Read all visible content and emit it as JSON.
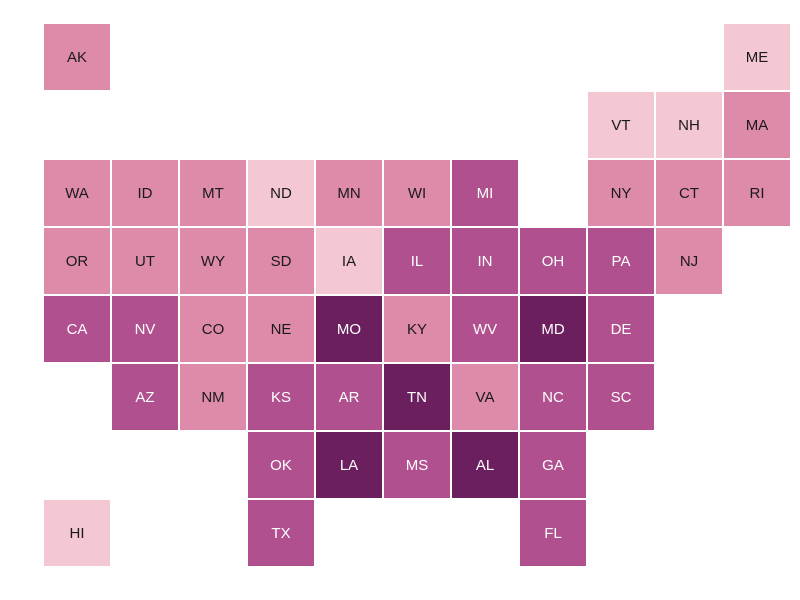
{
  "tiles": [
    {
      "label": "AK",
      "color": "#de8aab"
    },
    {
      "label": "ME",
      "color": "#f4c8d2"
    },
    {
      "label": "VT",
      "color": "#f4c8d2"
    },
    {
      "label": "NH",
      "color": "#f4c8d2"
    },
    {
      "label": "MA",
      "color": "#de8aab"
    },
    {
      "label": "WA",
      "color": "#de8aab"
    },
    {
      "label": "ID",
      "color": "#de8aab"
    },
    {
      "label": "MT",
      "color": "#de8aab"
    },
    {
      "label": "ND",
      "color": "#f4c8d2"
    },
    {
      "label": "MN",
      "color": "#de8aab"
    },
    {
      "label": "WI",
      "color": "#de8aab"
    },
    {
      "label": "MI",
      "color": "#b0508f"
    },
    {
      "label": "NY",
      "color": "#de8aab"
    },
    {
      "label": "CT",
      "color": "#de8aab"
    },
    {
      "label": "RI",
      "color": "#de8aab"
    },
    {
      "label": "OR",
      "color": "#de8aab"
    },
    {
      "label": "UT",
      "color": "#de8aab"
    },
    {
      "label": "WY",
      "color": "#de8aab"
    },
    {
      "label": "SD",
      "color": "#de8aab"
    },
    {
      "label": "IA",
      "color": "#f4c8d2"
    },
    {
      "label": "IL",
      "color": "#b0508f"
    },
    {
      "label": "IN",
      "color": "#b0508f"
    },
    {
      "label": "OH",
      "color": "#b0508f"
    },
    {
      "label": "PA",
      "color": "#b0508f"
    },
    {
      "label": "NJ",
      "color": "#de8aab"
    },
    {
      "label": "CA",
      "color": "#b0508f"
    },
    {
      "label": "NV",
      "color": "#b0508f"
    },
    {
      "label": "CO",
      "color": "#de8aab"
    },
    {
      "label": "NE",
      "color": "#de8aab"
    },
    {
      "label": "MO",
      "color": "#6b1f5e"
    },
    {
      "label": "KY",
      "color": "#de8aab"
    },
    {
      "label": "WV",
      "color": "#b0508f"
    },
    {
      "label": "MD",
      "color": "#6b1f5e"
    },
    {
      "label": "DE",
      "color": "#b0508f"
    },
    {
      "label": "AZ",
      "color": "#b0508f"
    },
    {
      "label": "NM",
      "color": "#de8aab"
    },
    {
      "label": "KS",
      "color": "#b0508f"
    },
    {
      "label": "AR",
      "color": "#b0508f"
    },
    {
      "label": "TN",
      "color": "#6b1f5e"
    },
    {
      "label": "VA",
      "color": "#de8aab"
    },
    {
      "label": "NC",
      "color": "#b0508f"
    },
    {
      "label": "SC",
      "color": "#b0508f"
    },
    {
      "label": "OK",
      "color": "#b0508f"
    },
    {
      "label": "LA",
      "color": "#6b1f5e"
    },
    {
      "label": "MS",
      "color": "#b0508f"
    },
    {
      "label": "AL",
      "color": "#6b1f5e"
    },
    {
      "label": "GA",
      "color": "#b0508f"
    },
    {
      "label": "HI",
      "color": "#f4c8d2"
    },
    {
      "label": "TX",
      "color": "#b0508f"
    },
    {
      "label": "FL",
      "color": "#b0508f"
    }
  ]
}
